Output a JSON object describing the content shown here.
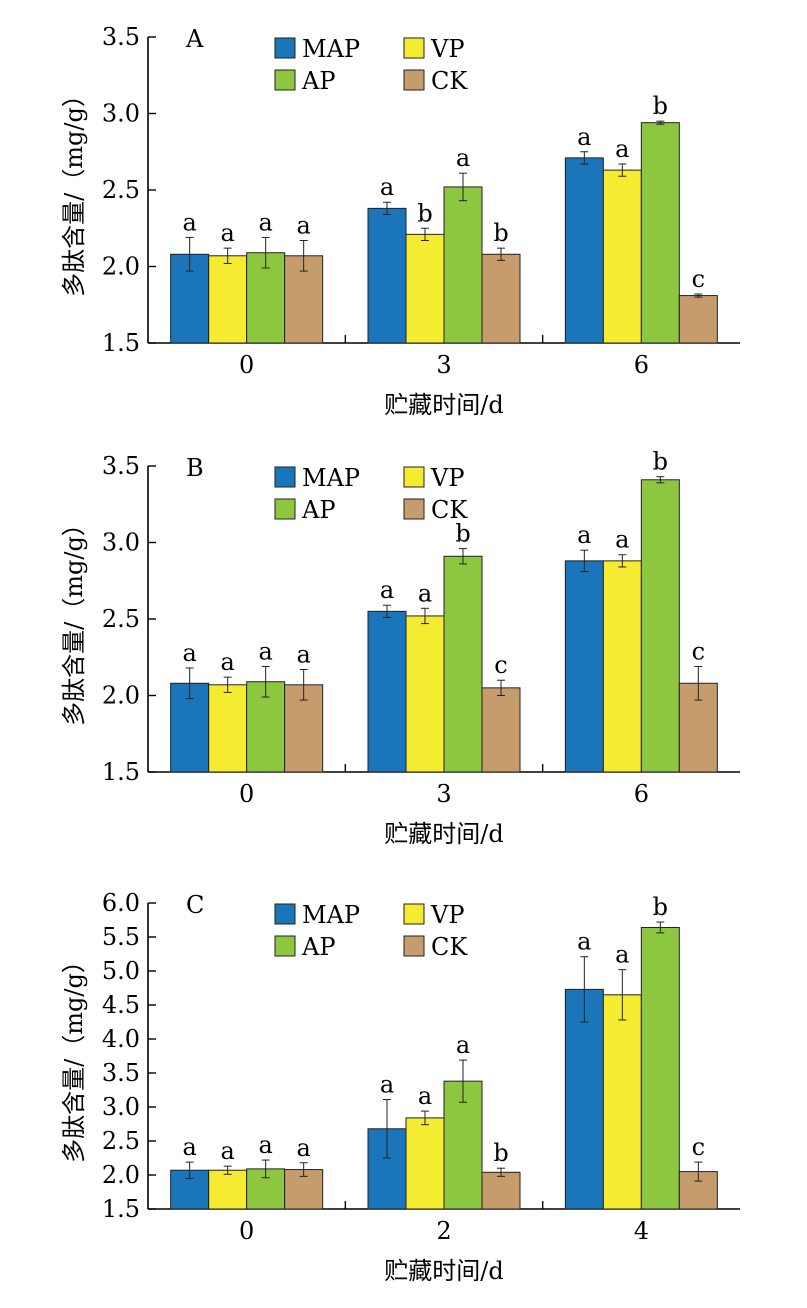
{
  "legend": [
    {
      "name": "MAP",
      "color": "#1b75bb"
    },
    {
      "name": "VP",
      "color": "#f5ec31"
    },
    {
      "name": "AP",
      "color": "#8dc63f"
    },
    {
      "name": "CK",
      "color": "#c69c6d"
    }
  ],
  "chart_data": [
    {
      "type": "bar",
      "panel": "A",
      "xlabel": "贮藏时间/d",
      "ylabel": "多肽含量/（mg/g）",
      "categories": [
        "0",
        "3",
        "6"
      ],
      "ylim": [
        1.5,
        3.5
      ],
      "yticks": [
        "1.5",
        "2.0",
        "2.5",
        "3.0",
        "3.5"
      ],
      "series": [
        {
          "name": "MAP",
          "values": [
            2.08,
            2.38,
            2.71
          ],
          "errors": [
            0.11,
            0.04,
            0.04
          ],
          "labels": [
            "a",
            "a",
            "a"
          ]
        },
        {
          "name": "VP",
          "values": [
            2.07,
            2.21,
            2.63
          ],
          "errors": [
            0.05,
            0.04,
            0.04
          ],
          "labels": [
            "a",
            "b",
            "a"
          ]
        },
        {
          "name": "AP",
          "values": [
            2.09,
            2.52,
            2.94
          ],
          "errors": [
            0.1,
            0.09,
            0.01
          ],
          "labels": [
            "a",
            "a",
            "b"
          ]
        },
        {
          "name": "CK",
          "values": [
            2.07,
            2.08,
            1.81
          ],
          "errors": [
            0.1,
            0.04,
            0.01
          ],
          "labels": [
            "a",
            "b",
            "c"
          ]
        }
      ]
    },
    {
      "type": "bar",
      "panel": "B",
      "xlabel": "贮藏时间/d",
      "ylabel": "多肽含量/（mg/g）",
      "categories": [
        "0",
        "3",
        "6"
      ],
      "ylim": [
        1.5,
        3.5
      ],
      "yticks": [
        "1.5",
        "2.0",
        "2.5",
        "3.0",
        "3.5"
      ],
      "series": [
        {
          "name": "MAP",
          "values": [
            2.08,
            2.55,
            2.88
          ],
          "errors": [
            0.1,
            0.04,
            0.07
          ],
          "labels": [
            "a",
            "a",
            "a"
          ]
        },
        {
          "name": "VP",
          "values": [
            2.07,
            2.52,
            2.88
          ],
          "errors": [
            0.05,
            0.05,
            0.04
          ],
          "labels": [
            "a",
            "a",
            "a"
          ]
        },
        {
          "name": "AP",
          "values": [
            2.09,
            2.91,
            3.41
          ],
          "errors": [
            0.1,
            0.05,
            0.02
          ],
          "labels": [
            "a",
            "b",
            "b"
          ]
        },
        {
          "name": "CK",
          "values": [
            2.07,
            2.05,
            2.08
          ],
          "errors": [
            0.1,
            0.05,
            0.11
          ],
          "labels": [
            "a",
            "c",
            "c"
          ]
        }
      ]
    },
    {
      "type": "bar",
      "panel": "C",
      "xlabel": "贮藏时间/d",
      "ylabel": "多肽含量/（mg/g）",
      "categories": [
        "0",
        "2",
        "4"
      ],
      "ylim": [
        1.5,
        6.0
      ],
      "yticks": [
        "1.5",
        "2.0",
        "2.5",
        "3.0",
        "3.5",
        "4.0",
        "4.5",
        "5.0",
        "5.5",
        "6.0"
      ],
      "series": [
        {
          "name": "MAP",
          "values": [
            2.07,
            2.68,
            4.73
          ],
          "errors": [
            0.12,
            0.43,
            0.48
          ],
          "labels": [
            "a",
            "a",
            "a"
          ]
        },
        {
          "name": "VP",
          "values": [
            2.07,
            2.84,
            4.65
          ],
          "errors": [
            0.06,
            0.1,
            0.37
          ],
          "labels": [
            "a",
            "a",
            "a"
          ]
        },
        {
          "name": "AP",
          "values": [
            2.09,
            3.38,
            5.64
          ],
          "errors": [
            0.13,
            0.31,
            0.08
          ],
          "labels": [
            "a",
            "a",
            "b"
          ]
        },
        {
          "name": "CK",
          "values": [
            2.08,
            2.04,
            2.05
          ],
          "errors": [
            0.1,
            0.06,
            0.14
          ],
          "labels": [
            "a",
            "b",
            "c"
          ]
        }
      ]
    }
  ]
}
